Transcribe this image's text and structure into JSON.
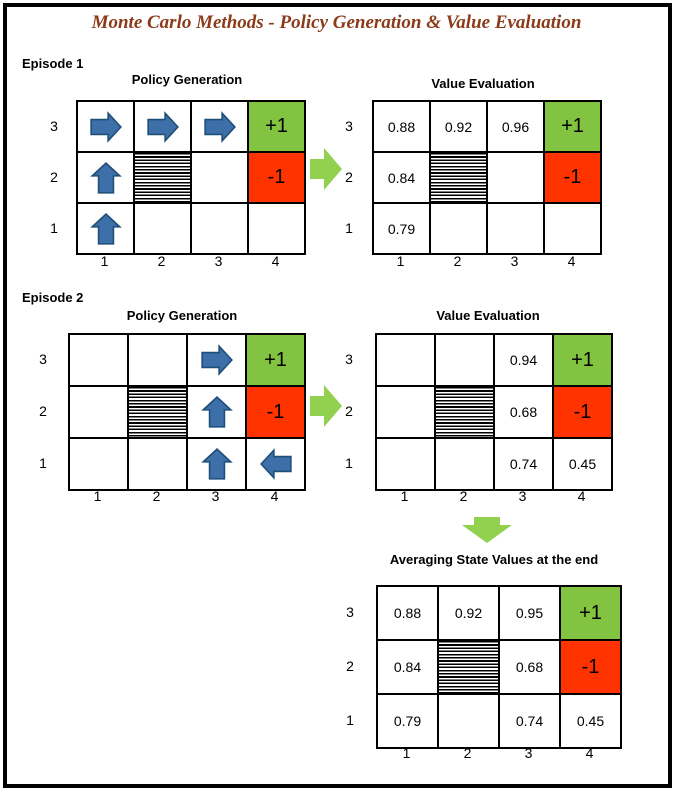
{
  "title": "Monte Carlo Methods - Policy Generation & Value Evaluation",
  "episode1": {
    "label": "Episode 1",
    "policy": {
      "caption": "Policy Generation",
      "rows": [
        [
          {
            "arrow": "right-arrow-icon"
          },
          {
            "arrow": "right-arrow-icon"
          },
          {
            "arrow": "right-arrow-icon"
          },
          {
            "text": "+1",
            "type": "pos"
          }
        ],
        [
          {
            "arrow": "up-arrow-icon"
          },
          {
            "type": "wall"
          },
          {},
          {
            "text": "-1",
            "type": "neg"
          }
        ],
        [
          {
            "arrow": "up-arrow-icon"
          },
          {},
          {},
          {}
        ]
      ]
    },
    "value": {
      "caption": "Value Evaluation",
      "rows": [
        [
          {
            "text": "0.88"
          },
          {
            "text": "0.92"
          },
          {
            "text": "0.96"
          },
          {
            "text": "+1",
            "type": "pos"
          }
        ],
        [
          {
            "text": "0.84"
          },
          {
            "type": "wall"
          },
          {},
          {
            "text": "-1",
            "type": "neg"
          }
        ],
        [
          {
            "text": "0.79"
          },
          {},
          {},
          {}
        ]
      ]
    }
  },
  "episode2": {
    "label": "Episode 2",
    "policy": {
      "caption": "Policy Generation",
      "rows": [
        [
          {},
          {},
          {
            "arrow": "right-arrow-icon"
          },
          {
            "text": "+1",
            "type": "pos"
          }
        ],
        [
          {},
          {
            "type": "wall"
          },
          {
            "arrow": "up-arrow-icon"
          },
          {
            "text": "-1",
            "type": "neg"
          }
        ],
        [
          {},
          {},
          {
            "arrow": "up-arrow-icon"
          },
          {
            "arrow": "left-arrow-icon"
          }
        ]
      ]
    },
    "value": {
      "caption": "Value Evaluation",
      "rows": [
        [
          {},
          {},
          {
            "text": "0.94"
          },
          {
            "text": "+1",
            "type": "pos"
          }
        ],
        [
          {},
          {
            "type": "wall"
          },
          {
            "text": "0.68"
          },
          {
            "text": "-1",
            "type": "neg"
          }
        ],
        [
          {},
          {},
          {
            "text": "0.74"
          },
          {
            "text": "0.45"
          }
        ]
      ]
    }
  },
  "average": {
    "caption": "Averaging State Values at the end",
    "rows": [
      [
        {
          "text": "0.88"
        },
        {
          "text": "0.92"
        },
        {
          "text": "0.95"
        },
        {
          "text": "+1",
          "type": "pos"
        }
      ],
      [
        {
          "text": "0.84"
        },
        {
          "type": "wall"
        },
        {
          "text": "0.68"
        },
        {
          "text": "-1",
          "type": "neg"
        }
      ],
      [
        {
          "text": "0.79"
        },
        {},
        {
          "text": "0.74"
        },
        {
          "text": "0.45"
        }
      ]
    ]
  },
  "row_labels": [
    "3",
    "2",
    "1"
  ],
  "col_labels": [
    "1",
    "2",
    "3",
    "4"
  ],
  "colors": {
    "positive": "#82c341",
    "negative": "#ff3300",
    "arrow_fill": "#3d6fa8",
    "arrow_stroke": "#1f4e79",
    "green_arrow": "#92d050",
    "title": "#8b3a1a"
  }
}
